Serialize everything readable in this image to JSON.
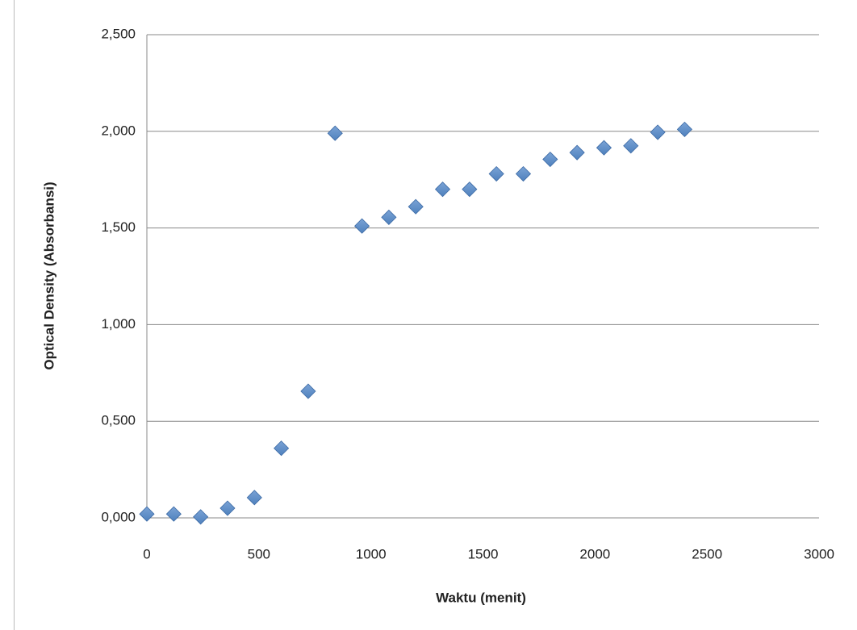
{
  "chart_data": {
    "type": "scatter",
    "x_label": "Waktu (menit)",
    "y_label": "Optical Density (Absorbansi)",
    "x": [
      0,
      120,
      240,
      360,
      480,
      600,
      720,
      840,
      960,
      1080,
      1200,
      1320,
      1440,
      1560,
      1680,
      1800,
      1920,
      2040,
      2160,
      2280,
      2400
    ],
    "values": [
      0.02,
      0.02,
      0.005,
      0.05,
      0.105,
      0.36,
      0.655,
      1.99,
      1.51,
      1.555,
      1.61,
      1.7,
      1.7,
      1.78,
      1.78,
      1.855,
      1.89,
      1.915,
      1.925,
      1.995,
      2.01
    ],
    "color": "#4f81bd",
    "xlim": [
      0,
      3000
    ],
    "xticks": [
      0,
      500,
      1000,
      1500,
      2000,
      2500,
      3000
    ],
    "ylim": [
      0,
      2.5
    ],
    "yticks": [
      {
        "value": 0,
        "label": "0,000"
      },
      {
        "value": 0.5,
        "label": "0,500"
      },
      {
        "value": 1,
        "label": "1,000"
      },
      {
        "value": 1.5,
        "label": "1,500"
      },
      {
        "value": 2,
        "label": "2,000"
      },
      {
        "value": 2.5,
        "label": "2,500"
      }
    ],
    "grid": true
  }
}
